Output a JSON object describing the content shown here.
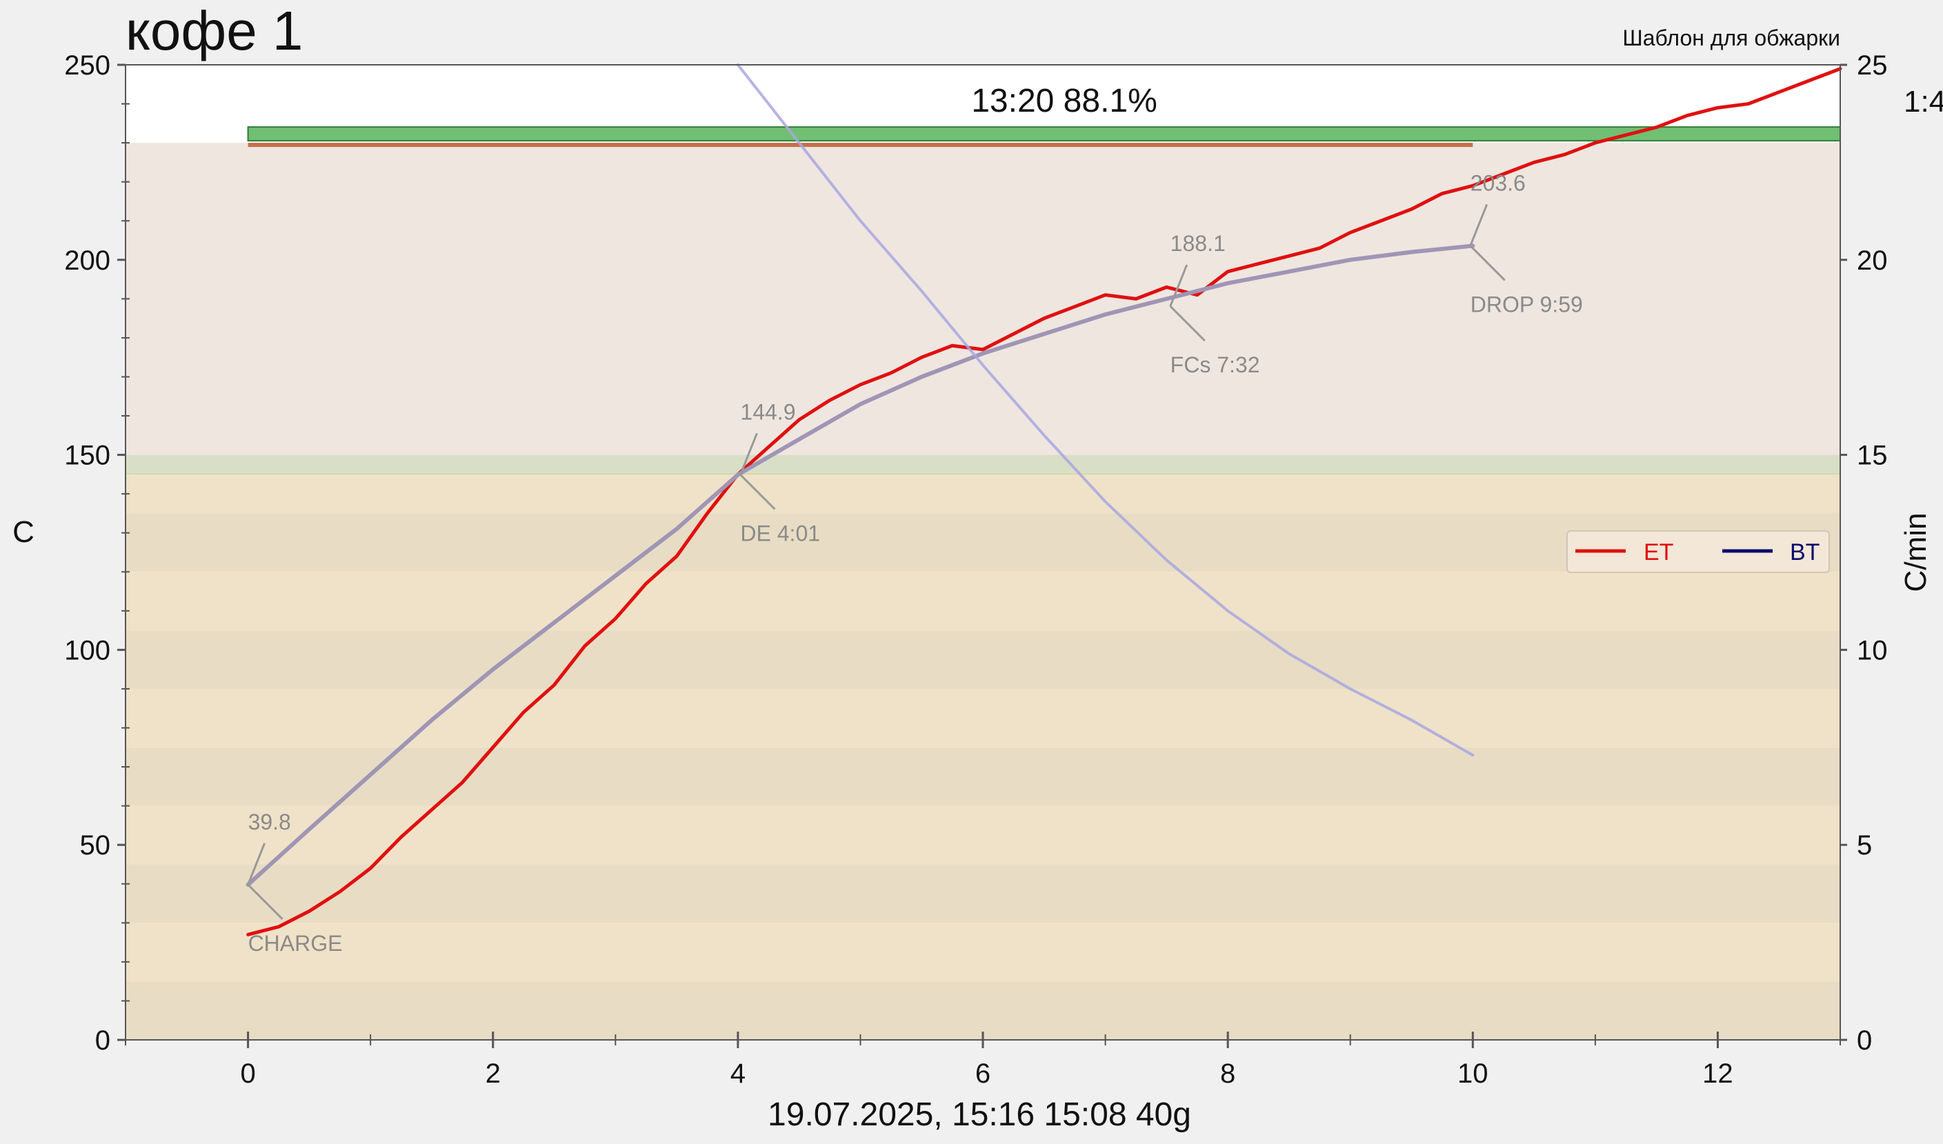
{
  "window": {
    "title": "кофе 1",
    "template_label": "Шаблон для обжарки",
    "status_text": "13:20  88.1%",
    "right_clipped_label": "1:4",
    "footer": "19.07.2025, 15:16   15:08   40g"
  },
  "chart_data": {
    "type": "line",
    "title": "кофе 1",
    "xlabel": "",
    "ylabel": "C",
    "y2label": "C/min",
    "xlim": [
      -1,
      13
    ],
    "ylim": [
      0,
      250
    ],
    "y2lim": [
      0,
      25
    ],
    "x_ticks": [
      "0",
      "2",
      "4",
      "6",
      "8",
      "10",
      "12"
    ],
    "x_tick_values": [
      0,
      2,
      4,
      6,
      8,
      10,
      12
    ],
    "y_ticks": [
      "0",
      "50",
      "100",
      "150",
      "200",
      "250"
    ],
    "y_tick_values": [
      0,
      50,
      100,
      150,
      200,
      250
    ],
    "y2_ticks": [
      "0",
      "5",
      "10",
      "15",
      "20",
      "25"
    ],
    "y2_tick_values": [
      0,
      5,
      10,
      15,
      20,
      25
    ],
    "grid": false,
    "legend_position": "right",
    "legend": [
      {
        "name": "ET",
        "color": "#e01010"
      },
      {
        "name": "BT",
        "color": "#0a0a6e"
      }
    ],
    "phases": {
      "drying_top": 145,
      "dev_green_band": [
        145,
        150
      ],
      "maillard_top": 230
    },
    "template_bars": [
      {
        "x_start": 0,
        "x_end": 13,
        "temp": 233,
        "color": "#4caf50"
      },
      {
        "x_start": 0,
        "x_end": 10,
        "temp": 230,
        "color": "#c0623a"
      }
    ],
    "series": [
      {
        "name": "ET",
        "color": "#e01010",
        "x": [
          0,
          0.25,
          0.5,
          0.75,
          1.0,
          1.25,
          1.5,
          1.75,
          2.0,
          2.25,
          2.5,
          2.75,
          3.0,
          3.25,
          3.5,
          3.75,
          4.0,
          4.25,
          4.5,
          4.75,
          5.0,
          5.25,
          5.5,
          5.75,
          6.0,
          6.25,
          6.5,
          6.75,
          7.0,
          7.25,
          7.5,
          7.75,
          8.0,
          8.25,
          8.5,
          8.75,
          9.0,
          9.25,
          9.5,
          9.75,
          10.0,
          10.25,
          10.5,
          10.75,
          11.0,
          11.25,
          11.5,
          11.75,
          12.0,
          12.25,
          12.5,
          12.75,
          13.0
        ],
        "values": [
          27,
          29,
          33,
          38,
          44,
          52,
          59,
          66,
          75,
          84,
          91,
          101,
          108,
          117,
          124,
          135,
          145,
          152,
          159,
          164,
          168,
          171,
          175,
          178,
          177,
          181,
          185,
          188,
          191,
          190,
          193,
          191,
          197,
          199,
          201,
          203,
          207,
          210,
          213,
          217,
          219,
          222,
          225,
          227,
          230,
          232,
          234,
          237,
          239,
          240,
          243,
          246,
          249
        ]
      },
      {
        "name": "BT",
        "color": "#9f95b5",
        "x": [
          0,
          0.5,
          1,
          1.5,
          2,
          2.5,
          3,
          3.5,
          4,
          4.5,
          5,
          5.5,
          6,
          6.5,
          7,
          7.5,
          8,
          8.5,
          9,
          9.5,
          10
        ],
        "values": [
          39.8,
          54,
          68,
          82,
          95,
          107,
          119,
          131,
          144.9,
          154,
          163,
          170,
          176,
          181,
          186,
          190,
          194,
          197,
          200,
          202,
          203.6
        ]
      },
      {
        "name": "RoR",
        "axis": "right",
        "color": "#a7a7e0",
        "x": [
          4,
          4.5,
          5,
          5.5,
          6,
          6.5,
          7,
          7.5,
          8,
          8.5,
          9,
          9.5,
          10
        ],
        "values": [
          25,
          23,
          21,
          19.2,
          17.3,
          15.5,
          13.8,
          12.3,
          11,
          9.9,
          9,
          8.2,
          7.3
        ]
      }
    ],
    "events": [
      {
        "key": "charge",
        "label": "CHARGE",
        "x": 0,
        "y": 39.8,
        "value": "39.8",
        "label_pos": "below"
      },
      {
        "key": "de",
        "label": "DE 4:01",
        "x": 4.02,
        "y": 144.9,
        "value": "144.9",
        "label_pos": "below"
      },
      {
        "key": "fcs",
        "label": "FCs 7:32",
        "x": 7.53,
        "y": 188.1,
        "value": "188.1",
        "label_pos": "below"
      },
      {
        "key": "drop",
        "label": "DROP 9:59",
        "x": 9.98,
        "y": 203.6,
        "value": "203.6",
        "label_pos": "below"
      }
    ]
  }
}
